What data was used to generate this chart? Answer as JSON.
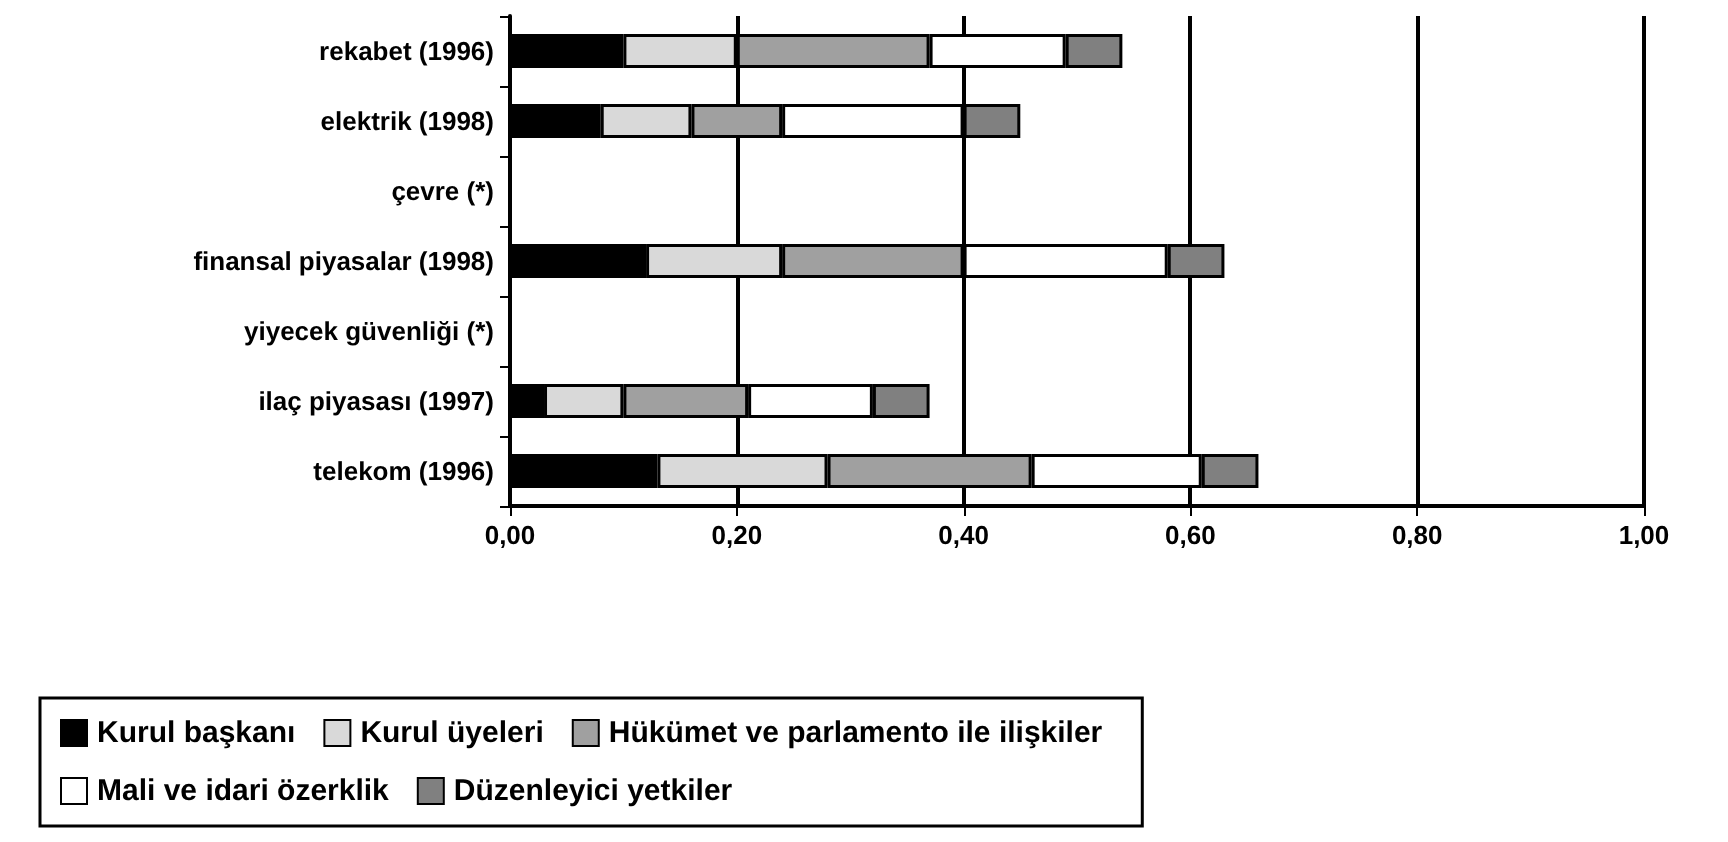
{
  "chart_data": {
    "type": "bar",
    "orientation": "horizontal",
    "stacked": true,
    "categories": [
      "rekabet (1996)",
      "elektrik (1998)",
      "çevre (*)",
      "finansal piyasalar (1998)",
      "yiyecek güvenliği (*)",
      "ilaç piyasası (1997)",
      "telekom (1996)"
    ],
    "series": [
      {
        "name": "Kurul başkanı",
        "color": "#000000",
        "values": [
          0.1,
          0.08,
          null,
          0.12,
          null,
          0.03,
          0.13
        ]
      },
      {
        "name": "Kurul üyeleri",
        "color": "#d9d9d9",
        "values": [
          0.1,
          0.08,
          null,
          0.12,
          null,
          0.07,
          0.15
        ]
      },
      {
        "name": "Hükümet ve parlamento ile ilişkiler",
        "color": "#a0a0a0",
        "values": [
          0.17,
          0.08,
          null,
          0.16,
          null,
          0.11,
          0.18
        ]
      },
      {
        "name": "Mali ve idari özerklik",
        "color": "#ffffff",
        "values": [
          0.12,
          0.16,
          null,
          0.18,
          null,
          0.11,
          0.15
        ]
      },
      {
        "name": "Düzenleyici yetkiler",
        "color": "#808080",
        "values": [
          0.05,
          0.05,
          null,
          0.05,
          null,
          0.05,
          0.05
        ]
      }
    ],
    "xlim": [
      0,
      1
    ],
    "xticks": [
      {
        "value": 0,
        "label": "0,00"
      },
      {
        "value": 0.2,
        "label": "0,20"
      },
      {
        "value": 0.4,
        "label": "0,40"
      },
      {
        "value": 0.6,
        "label": "0,60"
      },
      {
        "value": 0.8,
        "label": "0,80"
      },
      {
        "value": 1,
        "label": "1,00"
      }
    ],
    "grid": "x",
    "legend": "bottom"
  }
}
